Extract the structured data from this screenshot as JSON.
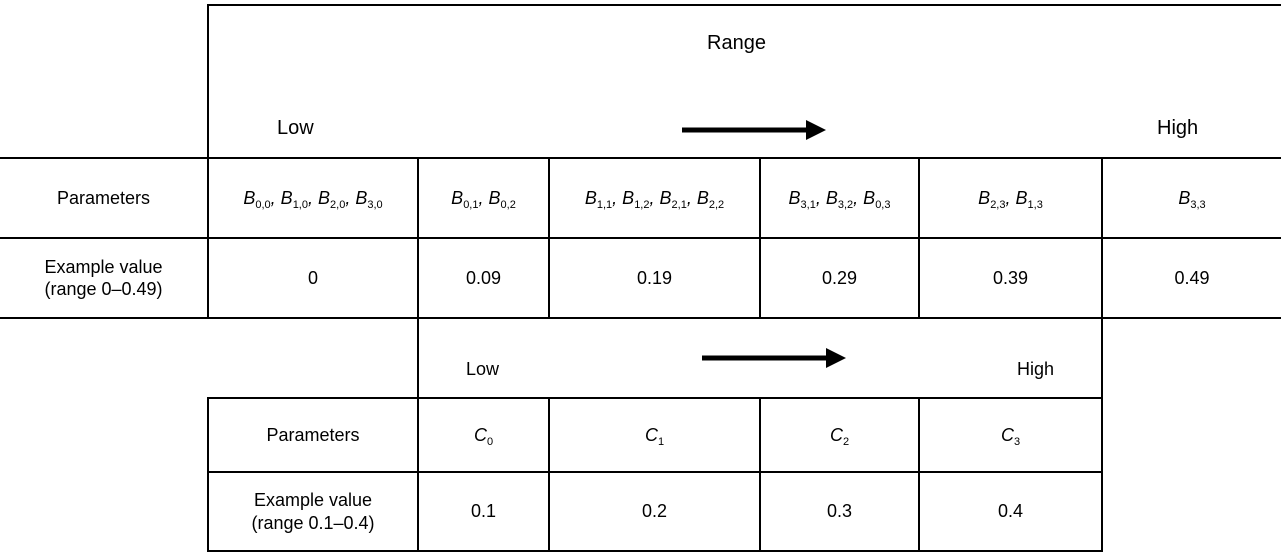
{
  "table1": {
    "range_label": "Range",
    "low_label": "Low",
    "high_label": "High",
    "row1_header": "Parameters",
    "row2_header_line1": "Example value",
    "row2_header_line2": "(range 0–0.49)",
    "params": [
      [
        [
          "B",
          "0,0"
        ],
        [
          "B",
          "1,0"
        ],
        [
          "B",
          "2,0"
        ],
        [
          "B",
          "3,0"
        ]
      ],
      [
        [
          "B",
          "0,1"
        ],
        [
          "B",
          "0,2"
        ]
      ],
      [
        [
          "B",
          "1,1"
        ],
        [
          "B",
          "1,2"
        ],
        [
          "B",
          "2,1"
        ],
        [
          "B",
          "2,2"
        ]
      ],
      [
        [
          "B",
          "3,1"
        ],
        [
          "B",
          "3,2"
        ],
        [
          "B",
          "0,3"
        ]
      ],
      [
        [
          "B",
          "2,3"
        ],
        [
          "B",
          "1,3"
        ]
      ],
      [
        [
          "B",
          "3,3"
        ]
      ]
    ],
    "values": [
      "0",
      "0.09",
      "0.19",
      "0.29",
      "0.39",
      "0.49"
    ]
  },
  "table2": {
    "low_label": "Low",
    "high_label": "High",
    "row1_header": "Parameters",
    "row2_header_line1": "Example value",
    "row2_header_line2": "(range 0.1–0.4)",
    "params": [
      [
        [
          "C",
          "0"
        ]
      ],
      [
        [
          "C",
          "1"
        ]
      ],
      [
        [
          "C",
          "2"
        ]
      ],
      [
        [
          "C",
          "3"
        ]
      ]
    ],
    "values": [
      "0.1",
      "0.2",
      "0.3",
      "0.4"
    ]
  }
}
